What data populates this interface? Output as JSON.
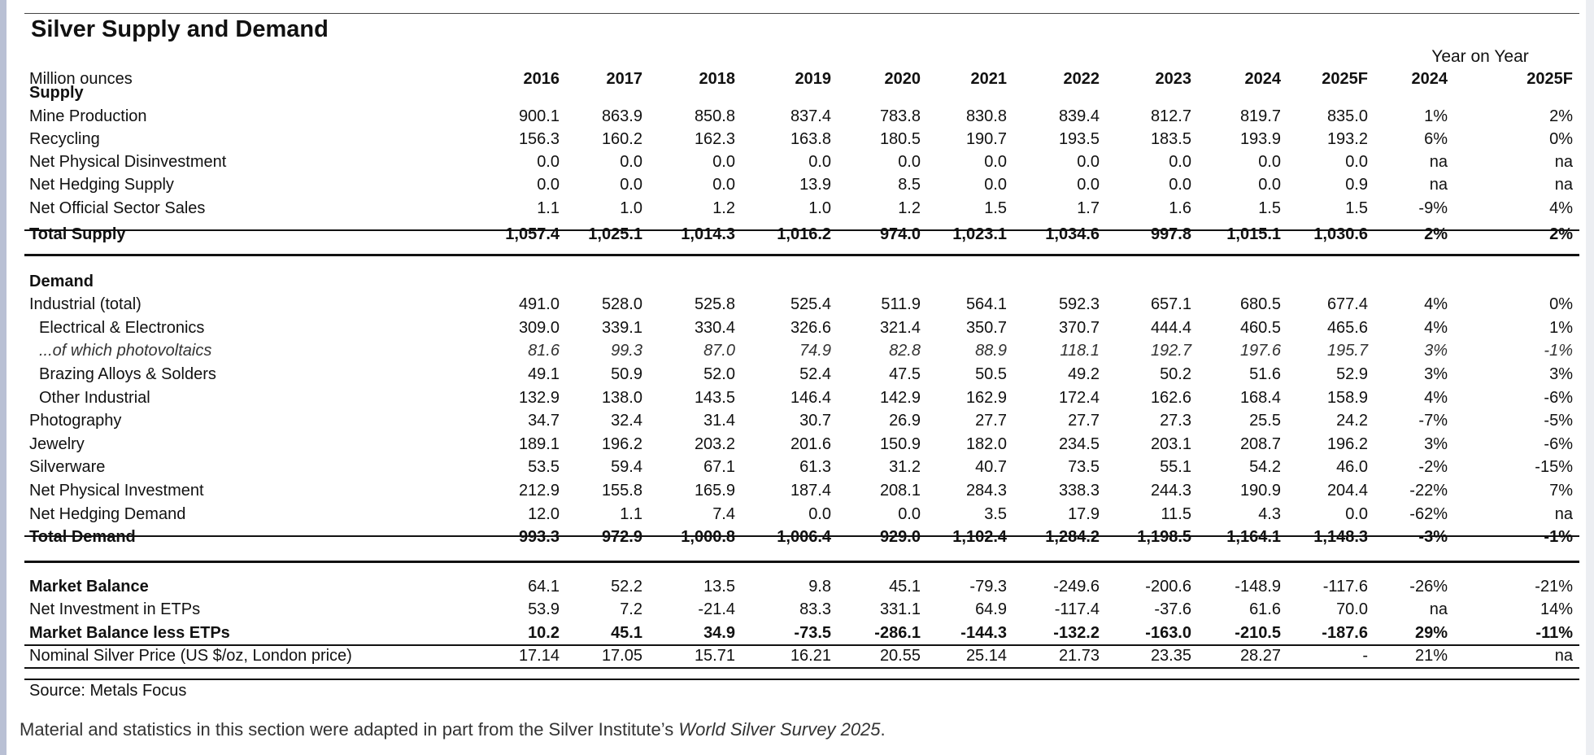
{
  "title": "Silver Supply and Demand",
  "units": "Million ounces",
  "yoy_label": "Year on Year",
  "years": [
    "2016",
    "2017",
    "2018",
    "2019",
    "2020",
    "2021",
    "2022",
    "2023",
    "2024",
    "2025F"
  ],
  "yoy_years": [
    "2024",
    "2025F"
  ],
  "rows": [
    {
      "type": "section",
      "label": "Supply"
    },
    {
      "type": "data",
      "label": "Mine Production",
      "values": [
        "900.1",
        "863.9",
        "850.8",
        "837.4",
        "783.8",
        "830.8",
        "839.4",
        "812.7",
        "819.7",
        "835.0"
      ],
      "yoy": [
        "1%",
        "2%"
      ]
    },
    {
      "type": "data",
      "label": "Recycling",
      "values": [
        "156.3",
        "160.2",
        "162.3",
        "163.8",
        "180.5",
        "190.7",
        "193.5",
        "183.5",
        "193.9",
        "193.2"
      ],
      "yoy": [
        "6%",
        "0%"
      ]
    },
    {
      "type": "data",
      "label": "Net Physical Disinvestment",
      "values": [
        "0.0",
        "0.0",
        "0.0",
        "0.0",
        "0.0",
        "0.0",
        "0.0",
        "0.0",
        "0.0",
        "0.0"
      ],
      "yoy": [
        "na",
        "na"
      ]
    },
    {
      "type": "data",
      "label": "Net Hedging Supply",
      "values": [
        "0.0",
        "0.0",
        "0.0",
        "13.9",
        "8.5",
        "0.0",
        "0.0",
        "0.0",
        "0.0",
        "0.9"
      ],
      "yoy": [
        "na",
        "na"
      ]
    },
    {
      "type": "data",
      "label": "Net Official Sector Sales",
      "values": [
        "1.1",
        "1.0",
        "1.2",
        "1.0",
        "1.2",
        "1.5",
        "1.7",
        "1.6",
        "1.5",
        "1.5"
      ],
      "yoy": [
        "-9%",
        "4%"
      ]
    },
    {
      "type": "total",
      "label": "Total Supply",
      "values": [
        "1,057.4",
        "1,025.1",
        "1,014.3",
        "1,016.2",
        "974.0",
        "1,023.1",
        "1,034.6",
        "997.8",
        "1,015.1",
        "1,030.6"
      ],
      "yoy": [
        "2%",
        "2%"
      ]
    },
    {
      "type": "section",
      "label": "Demand"
    },
    {
      "type": "data",
      "label": "Industrial (total)",
      "values": [
        "491.0",
        "528.0",
        "525.8",
        "525.4",
        "511.9",
        "564.1",
        "592.3",
        "657.1",
        "680.5",
        "677.4"
      ],
      "yoy": [
        "4%",
        "0%"
      ]
    },
    {
      "type": "data",
      "indent": true,
      "label": "Electrical & Electronics",
      "values": [
        "309.0",
        "339.1",
        "330.4",
        "326.6",
        "321.4",
        "350.7",
        "370.7",
        "444.4",
        "460.5",
        "465.6"
      ],
      "yoy": [
        "4%",
        "1%"
      ]
    },
    {
      "type": "italic",
      "indent": true,
      "label": "...of which photovoltaics",
      "values": [
        "81.6",
        "99.3",
        "87.0",
        "74.9",
        "82.8",
        "88.9",
        "118.1",
        "192.7",
        "197.6",
        "195.7"
      ],
      "yoy": [
        "3%",
        "-1%"
      ]
    },
    {
      "type": "data",
      "indent": true,
      "label": "Brazing Alloys & Solders",
      "values": [
        "49.1",
        "50.9",
        "52.0",
        "52.4",
        "47.5",
        "50.5",
        "49.2",
        "50.2",
        "51.6",
        "52.9"
      ],
      "yoy": [
        "3%",
        "3%"
      ]
    },
    {
      "type": "data",
      "indent": true,
      "label": "Other Industrial",
      "values": [
        "132.9",
        "138.0",
        "143.5",
        "146.4",
        "142.9",
        "162.9",
        "172.4",
        "162.6",
        "168.4",
        "158.9"
      ],
      "yoy": [
        "4%",
        "-6%"
      ]
    },
    {
      "type": "data",
      "label": "Photography",
      "values": [
        "34.7",
        "32.4",
        "31.4",
        "30.7",
        "26.9",
        "27.7",
        "27.7",
        "27.3",
        "25.5",
        "24.2"
      ],
      "yoy": [
        "-7%",
        "-5%"
      ]
    },
    {
      "type": "data",
      "label": "Jewelry",
      "values": [
        "189.1",
        "196.2",
        "203.2",
        "201.6",
        "150.9",
        "182.0",
        "234.5",
        "203.1",
        "208.7",
        "196.2"
      ],
      "yoy": [
        "3%",
        "-6%"
      ]
    },
    {
      "type": "data",
      "label": "Silverware",
      "values": [
        "53.5",
        "59.4",
        "67.1",
        "61.3",
        "31.2",
        "40.7",
        "73.5",
        "55.1",
        "54.2",
        "46.0"
      ],
      "yoy": [
        "-2%",
        "-15%"
      ]
    },
    {
      "type": "data",
      "label": "Net Physical Investment",
      "values": [
        "212.9",
        "155.8",
        "165.9",
        "187.4",
        "208.1",
        "284.3",
        "338.3",
        "244.3",
        "190.9",
        "204.4"
      ],
      "yoy": [
        "-22%",
        "7%"
      ]
    },
    {
      "type": "data",
      "label": "Net Hedging Demand",
      "values": [
        "12.0",
        "1.1",
        "7.4",
        "0.0",
        "0.0",
        "3.5",
        "17.9",
        "11.5",
        "4.3",
        "0.0"
      ],
      "yoy": [
        "-62%",
        "na"
      ]
    },
    {
      "type": "total",
      "label": "Total Demand",
      "values": [
        "993.3",
        "972.9",
        "1,000.8",
        "1,006.4",
        "929.0",
        "1,102.4",
        "1,284.2",
        "1,198.5",
        "1,164.1",
        "1,148.3"
      ],
      "yoy": [
        "-3%",
        "-1%"
      ]
    },
    {
      "type": "total",
      "label": "Market Balance",
      "values": [
        "64.1",
        "52.2",
        "13.5",
        "9.8",
        "45.1",
        "-79.3",
        "-249.6",
        "-200.6",
        "-148.9",
        "-117.6"
      ],
      "yoy": [
        "-26%",
        "-21%"
      ],
      "light_values": true
    },
    {
      "type": "data",
      "label": "Net Investment in ETPs",
      "values": [
        "53.9",
        "7.2",
        "-21.4",
        "83.3",
        "331.1",
        "64.9",
        "-117.4",
        "-37.6",
        "61.6",
        "70.0"
      ],
      "yoy": [
        "na",
        "14%"
      ]
    },
    {
      "type": "total",
      "label": "Market Balance less ETPs",
      "values": [
        "10.2",
        "45.1",
        "34.9",
        "-73.5",
        "-286.1",
        "-144.3",
        "-132.2",
        "-163.0",
        "-210.5",
        "-187.6"
      ],
      "yoy": [
        "29%",
        "-11%"
      ]
    },
    {
      "type": "data",
      "label": "Nominal Silver Price (US $/oz, London price)",
      "values": [
        "17.14",
        "17.05",
        "15.71",
        "16.21",
        "20.55",
        "25.14",
        "21.73",
        "23.35",
        "28.27",
        "-"
      ],
      "yoy": [
        "21%",
        "na"
      ]
    }
  ],
  "source": "Source: Metals Focus",
  "footnote_prefix": "Material and statistics in this section were adapted in part from the Silver Institute’s ",
  "footnote_title": "World Silver Survey 2025",
  "footnote_suffix": "."
}
